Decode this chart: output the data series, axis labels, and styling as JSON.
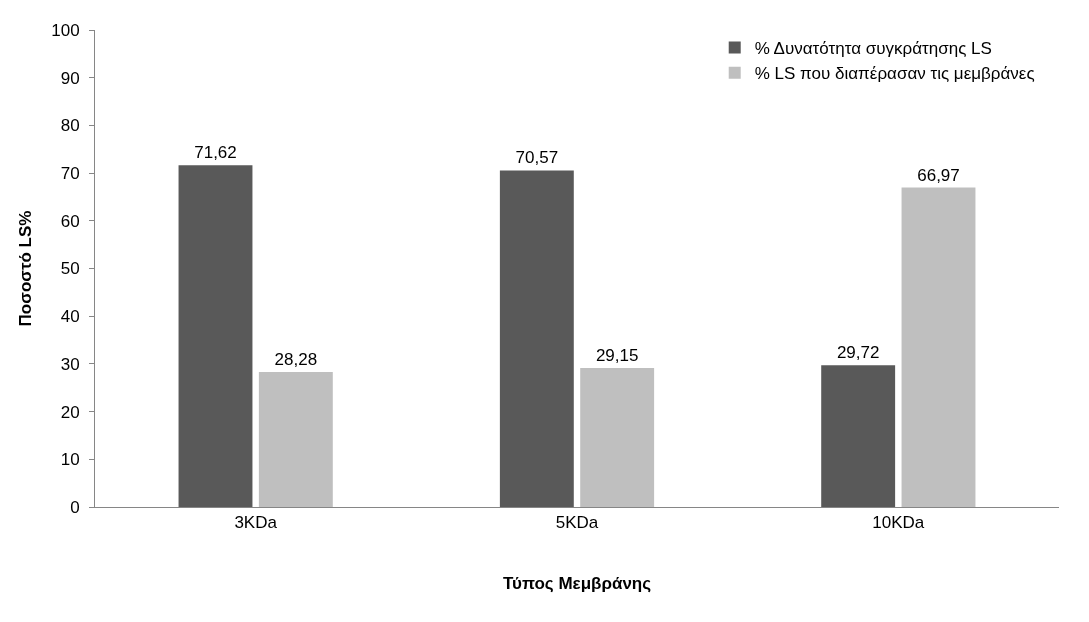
{
  "chart_data": {
    "type": "bar",
    "xlabel": "Τύπος Μεμβράνης",
    "ylabel": "Ποσοστό LS%",
    "categories": [
      "3KDa",
      "5KDa",
      "10KDa"
    ],
    "series": [
      {
        "name": "% Δυνατότητα συγκράτησης LS",
        "color": "#595959",
        "values": [
          71.62,
          70.57,
          29.72
        ],
        "value_labels": [
          "71,62",
          "70,57",
          "29,72"
        ]
      },
      {
        "name": "% LS που διαπέρασαν τις μεμβράνες",
        "color": "#bfbfbf",
        "values": [
          28.28,
          29.15,
          66.97
        ],
        "value_labels": [
          "28,28",
          "29,15",
          "66,97"
        ]
      }
    ],
    "ylim": [
      0,
      100
    ],
    "yticks": [
      0,
      10,
      20,
      30,
      40,
      50,
      60,
      70,
      80,
      90,
      100
    ],
    "legend": "top right"
  }
}
